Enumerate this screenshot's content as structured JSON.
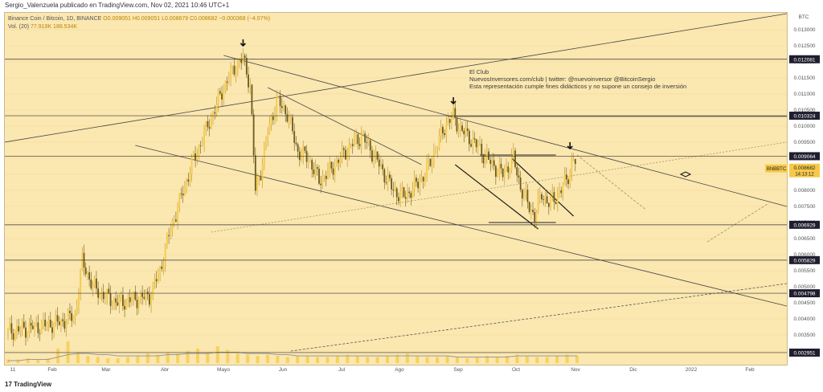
{
  "header": {
    "attribution": "Sergio_Valenzuela publicado en TradingView.com, Nov 02, 2021 10:46 UTC+1",
    "symbol_line": "Binance Coin / Bitcoin, 1D, BINANCE",
    "ohlc": "O0.009051 H0.009051 L0.008679 C0.008682 −0.000368 (−4.07%)",
    "vol_label": "Vol. (20)",
    "vol_values": "77.919K 188.534K"
  },
  "annotation": {
    "line1": "El Club",
    "line2": "NuevosInversores.com/club | twitter: @nuevoinversor @BitcoinSergio",
    "line3": "Esta representación cumple fines didácticos y no supone un consejo de inversión"
  },
  "footer": {
    "brand": "TradingView"
  },
  "colors": {
    "background": "#fbe7b0",
    "candle_up": "#f7c948",
    "candle_down": "#6b5a1a",
    "price_label": "#1e1e2e",
    "current_price_label": "#f7c948"
  },
  "chart_data": {
    "type": "candlestick",
    "title": "Binance Coin / Bitcoin, 1D, BINANCE",
    "currency": "BTC",
    "y_axis": {
      "ticks": [
        "0.013000",
        "0.012500",
        "0.012000",
        "0.011500",
        "0.011000",
        "0.010500",
        "0.010000",
        "0.009500",
        "0.009000",
        "0.008500",
        "0.008000",
        "0.007500",
        "0.007000",
        "0.006500",
        "0.006000",
        "0.005500",
        "0.005000",
        "0.004500",
        "0.004000",
        "0.003500",
        "0.003000"
      ],
      "ylim": [
        0.0027,
        0.0134
      ]
    },
    "x_axis": {
      "ticks": [
        "11",
        "Feb",
        "Mar",
        "Abr",
        "Mayo",
        "Jun",
        "Jul",
        "Ago",
        "Sep",
        "Oct",
        "Nov",
        "Dic",
        "2022",
        "Feb"
      ]
    },
    "horizontal_levels": [
      {
        "value": 0.012081,
        "label": "0.012081"
      },
      {
        "value": 0.010324,
        "label": "0.010324"
      },
      {
        "value": 0.009064,
        "label": "0.009064"
      },
      {
        "value": 0.006929,
        "label": "0.006929"
      },
      {
        "value": 0.005829,
        "label": "0.005829"
      },
      {
        "value": 0.004798,
        "label": "0.004798"
      },
      {
        "value": 0.002951,
        "label": "0.002951"
      }
    ],
    "current_price": {
      "symbol": "BNBBTC",
      "value": "0.008682",
      "countdown": "14:13:12"
    },
    "price_series": [
      {
        "t": 0,
        "v": 0.0036
      },
      {
        "t": 10,
        "v": 0.0037
      },
      {
        "t": 20,
        "v": 0.0038
      },
      {
        "t": 30,
        "v": 0.0039
      },
      {
        "t": 38,
        "v": 0.0041
      },
      {
        "t": 42,
        "v": 0.0058
      },
      {
        "t": 48,
        "v": 0.005
      },
      {
        "t": 55,
        "v": 0.0047
      },
      {
        "t": 62,
        "v": 0.0045
      },
      {
        "t": 70,
        "v": 0.0046
      },
      {
        "t": 80,
        "v": 0.0047
      },
      {
        "t": 86,
        "v": 0.0055
      },
      {
        "t": 92,
        "v": 0.0068
      },
      {
        "t": 98,
        "v": 0.0078
      },
      {
        "t": 104,
        "v": 0.0088
      },
      {
        "t": 110,
        "v": 0.0096
      },
      {
        "t": 116,
        "v": 0.0104
      },
      {
        "t": 122,
        "v": 0.0112
      },
      {
        "t": 128,
        "v": 0.0118
      },
      {
        "t": 133,
        "v": 0.0121
      },
      {
        "t": 137,
        "v": 0.0113
      },
      {
        "t": 140,
        "v": 0.008
      },
      {
        "t": 143,
        "v": 0.0086
      },
      {
        "t": 147,
        "v": 0.0098
      },
      {
        "t": 152,
        "v": 0.0108
      },
      {
        "t": 158,
        "v": 0.0104
      },
      {
        "t": 164,
        "v": 0.0092
      },
      {
        "t": 170,
        "v": 0.009
      },
      {
        "t": 176,
        "v": 0.0083
      },
      {
        "t": 182,
        "v": 0.0086
      },
      {
        "t": 188,
        "v": 0.009
      },
      {
        "t": 194,
        "v": 0.0094
      },
      {
        "t": 200,
        "v": 0.0097
      },
      {
        "t": 206,
        "v": 0.0092
      },
      {
        "t": 212,
        "v": 0.0086
      },
      {
        "t": 218,
        "v": 0.008
      },
      {
        "t": 224,
        "v": 0.0078
      },
      {
        "t": 230,
        "v": 0.0081
      },
      {
        "t": 236,
        "v": 0.0085
      },
      {
        "t": 242,
        "v": 0.0093
      },
      {
        "t": 248,
        "v": 0.0101
      },
      {
        "t": 252,
        "v": 0.0103
      },
      {
        "t": 256,
        "v": 0.0099
      },
      {
        "t": 262,
        "v": 0.0096
      },
      {
        "t": 268,
        "v": 0.0092
      },
      {
        "t": 274,
        "v": 0.0088
      },
      {
        "t": 280,
        "v": 0.0085
      },
      {
        "t": 286,
        "v": 0.009
      },
      {
        "t": 290,
        "v": 0.0081
      },
      {
        "t": 294,
        "v": 0.0076
      },
      {
        "t": 298,
        "v": 0.0072
      },
      {
        "t": 302,
        "v": 0.0079
      },
      {
        "t": 306,
        "v": 0.0076
      },
      {
        "t": 310,
        "v": 0.0078
      },
      {
        "t": 314,
        "v": 0.0081
      },
      {
        "t": 318,
        "v": 0.0086
      },
      {
        "t": 320,
        "v": 0.009
      },
      {
        "t": 322,
        "v": 0.0087
      }
    ],
    "volume_series": [
      3,
      3,
      4,
      3,
      4,
      12,
      18,
      9,
      6,
      5,
      4,
      4,
      5,
      6,
      8,
      7,
      9,
      8,
      10,
      12,
      9,
      14,
      11,
      8,
      7,
      6,
      7,
      6,
      5,
      6,
      6,
      5,
      5,
      6,
      7,
      6,
      5,
      5,
      6,
      7,
      8,
      6,
      5,
      5,
      6,
      5,
      4,
      5,
      6,
      5,
      6,
      7,
      6,
      5,
      5,
      6,
      7,
      6
    ],
    "volume_ma": [
      2,
      2,
      3,
      3,
      3,
      5,
      7,
      8,
      8,
      7,
      7,
      6,
      6,
      6,
      6,
      6,
      7,
      7,
      8,
      8,
      8,
      9,
      9,
      9,
      8,
      8,
      8,
      7,
      7,
      6,
      6,
      6,
      6,
      6,
      6,
      6,
      6,
      6,
      6,
      6,
      6,
      6,
      6,
      6,
      6,
      5,
      5,
      5,
      5,
      5,
      5,
      6,
      6,
      6,
      6,
      6,
      6,
      6
    ]
  }
}
